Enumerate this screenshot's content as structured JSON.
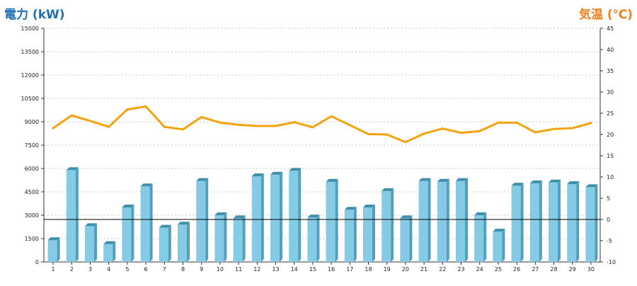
{
  "chart_data": {
    "type": "bar",
    "categories": [
      "1",
      "2",
      "3",
      "4",
      "5",
      "6",
      "7",
      "8",
      "9",
      "10",
      "11",
      "12",
      "13",
      "14",
      "15",
      "16",
      "17",
      "18",
      "19",
      "20",
      "21",
      "22",
      "23",
      "24",
      "25",
      "26",
      "27",
      "28",
      "29",
      "30"
    ],
    "series": [
      {
        "name": "電力",
        "axis": "left",
        "type": "bar",
        "values": [
          1400,
          5900,
          2300,
          1150,
          3500,
          4850,
          2200,
          2400,
          5200,
          3000,
          2800,
          5500,
          5600,
          5850,
          2850,
          5150,
          3350,
          3500,
          4550,
          2800,
          5200,
          5150,
          5200,
          3000,
          1950,
          4900,
          5050,
          5100,
          5000,
          4800
        ]
      },
      {
        "name": "気温",
        "axis": "right",
        "type": "line",
        "values": [
          21.5,
          24.5,
          23.2,
          21.8,
          25.9,
          26.6,
          21.8,
          21.2,
          24.1,
          22.8,
          22.3,
          22.0,
          22.0,
          22.9,
          21.7,
          24.3,
          22.2,
          20.1,
          20.0,
          18.2,
          20.2,
          21.4,
          20.4,
          20.8,
          22.8,
          22.8,
          20.5,
          21.3,
          21.5,
          22.7
        ]
      }
    ],
    "y_left": {
      "label": "電力 (kW)",
      "min": 0,
      "max": 15000,
      "ticks": [
        0,
        1500,
        3000,
        4500,
        6000,
        7500,
        9000,
        10500,
        12000,
        13500,
        15000
      ]
    },
    "y_right": {
      "label": "気温 (℃)",
      "min": -10,
      "max": 45,
      "ticks": [
        -10,
        -5,
        0,
        5,
        10,
        15,
        20,
        25,
        30,
        35,
        40,
        45
      ]
    },
    "grid": true,
    "colors": {
      "bar_front": "#86cbe6",
      "bar_side": "#4f9fbd",
      "bar_top": "#3f8eaa",
      "line": "#f5a20f",
      "grid": "#c8c8c8",
      "axis": "#333333",
      "zero_line": "#000000",
      "left_label": "#1f6fb5",
      "right_label": "#ef7f1a"
    }
  }
}
